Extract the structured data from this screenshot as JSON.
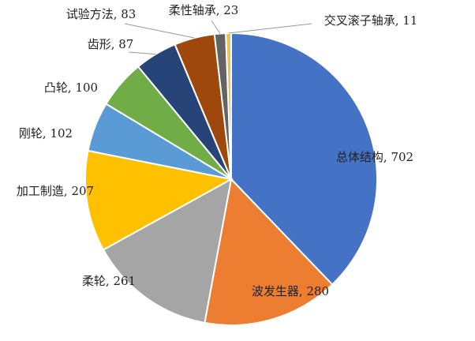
{
  "chart_data": {
    "type": "pie",
    "categories": [
      "总体结构",
      "波发生器",
      "柔轮",
      "加工制造",
      "刚轮",
      "凸轮",
      "齿形",
      "试验方法",
      "柔性轴承",
      "交叉滚子轴承"
    ],
    "values": [
      702,
      280,
      261,
      207,
      102,
      100,
      87,
      83,
      23,
      11
    ],
    "value_labels": [
      "总体结构, 702",
      "波发生器, 280",
      "柔轮, 261",
      "加工制造, 207",
      "刚轮, 102",
      "凸轮, 100",
      "齿形, 87",
      "试验方法, 83",
      "柔性轴承, 23",
      "交叉滚子轴承, 11"
    ],
    "colors": [
      "#4472c4",
      "#ed7d31",
      "#a5a5a5",
      "#ffc000",
      "#5b9bd5",
      "#70ad47",
      "#264478",
      "#9e480e",
      "#636363",
      "#e8c35a"
    ]
  }
}
